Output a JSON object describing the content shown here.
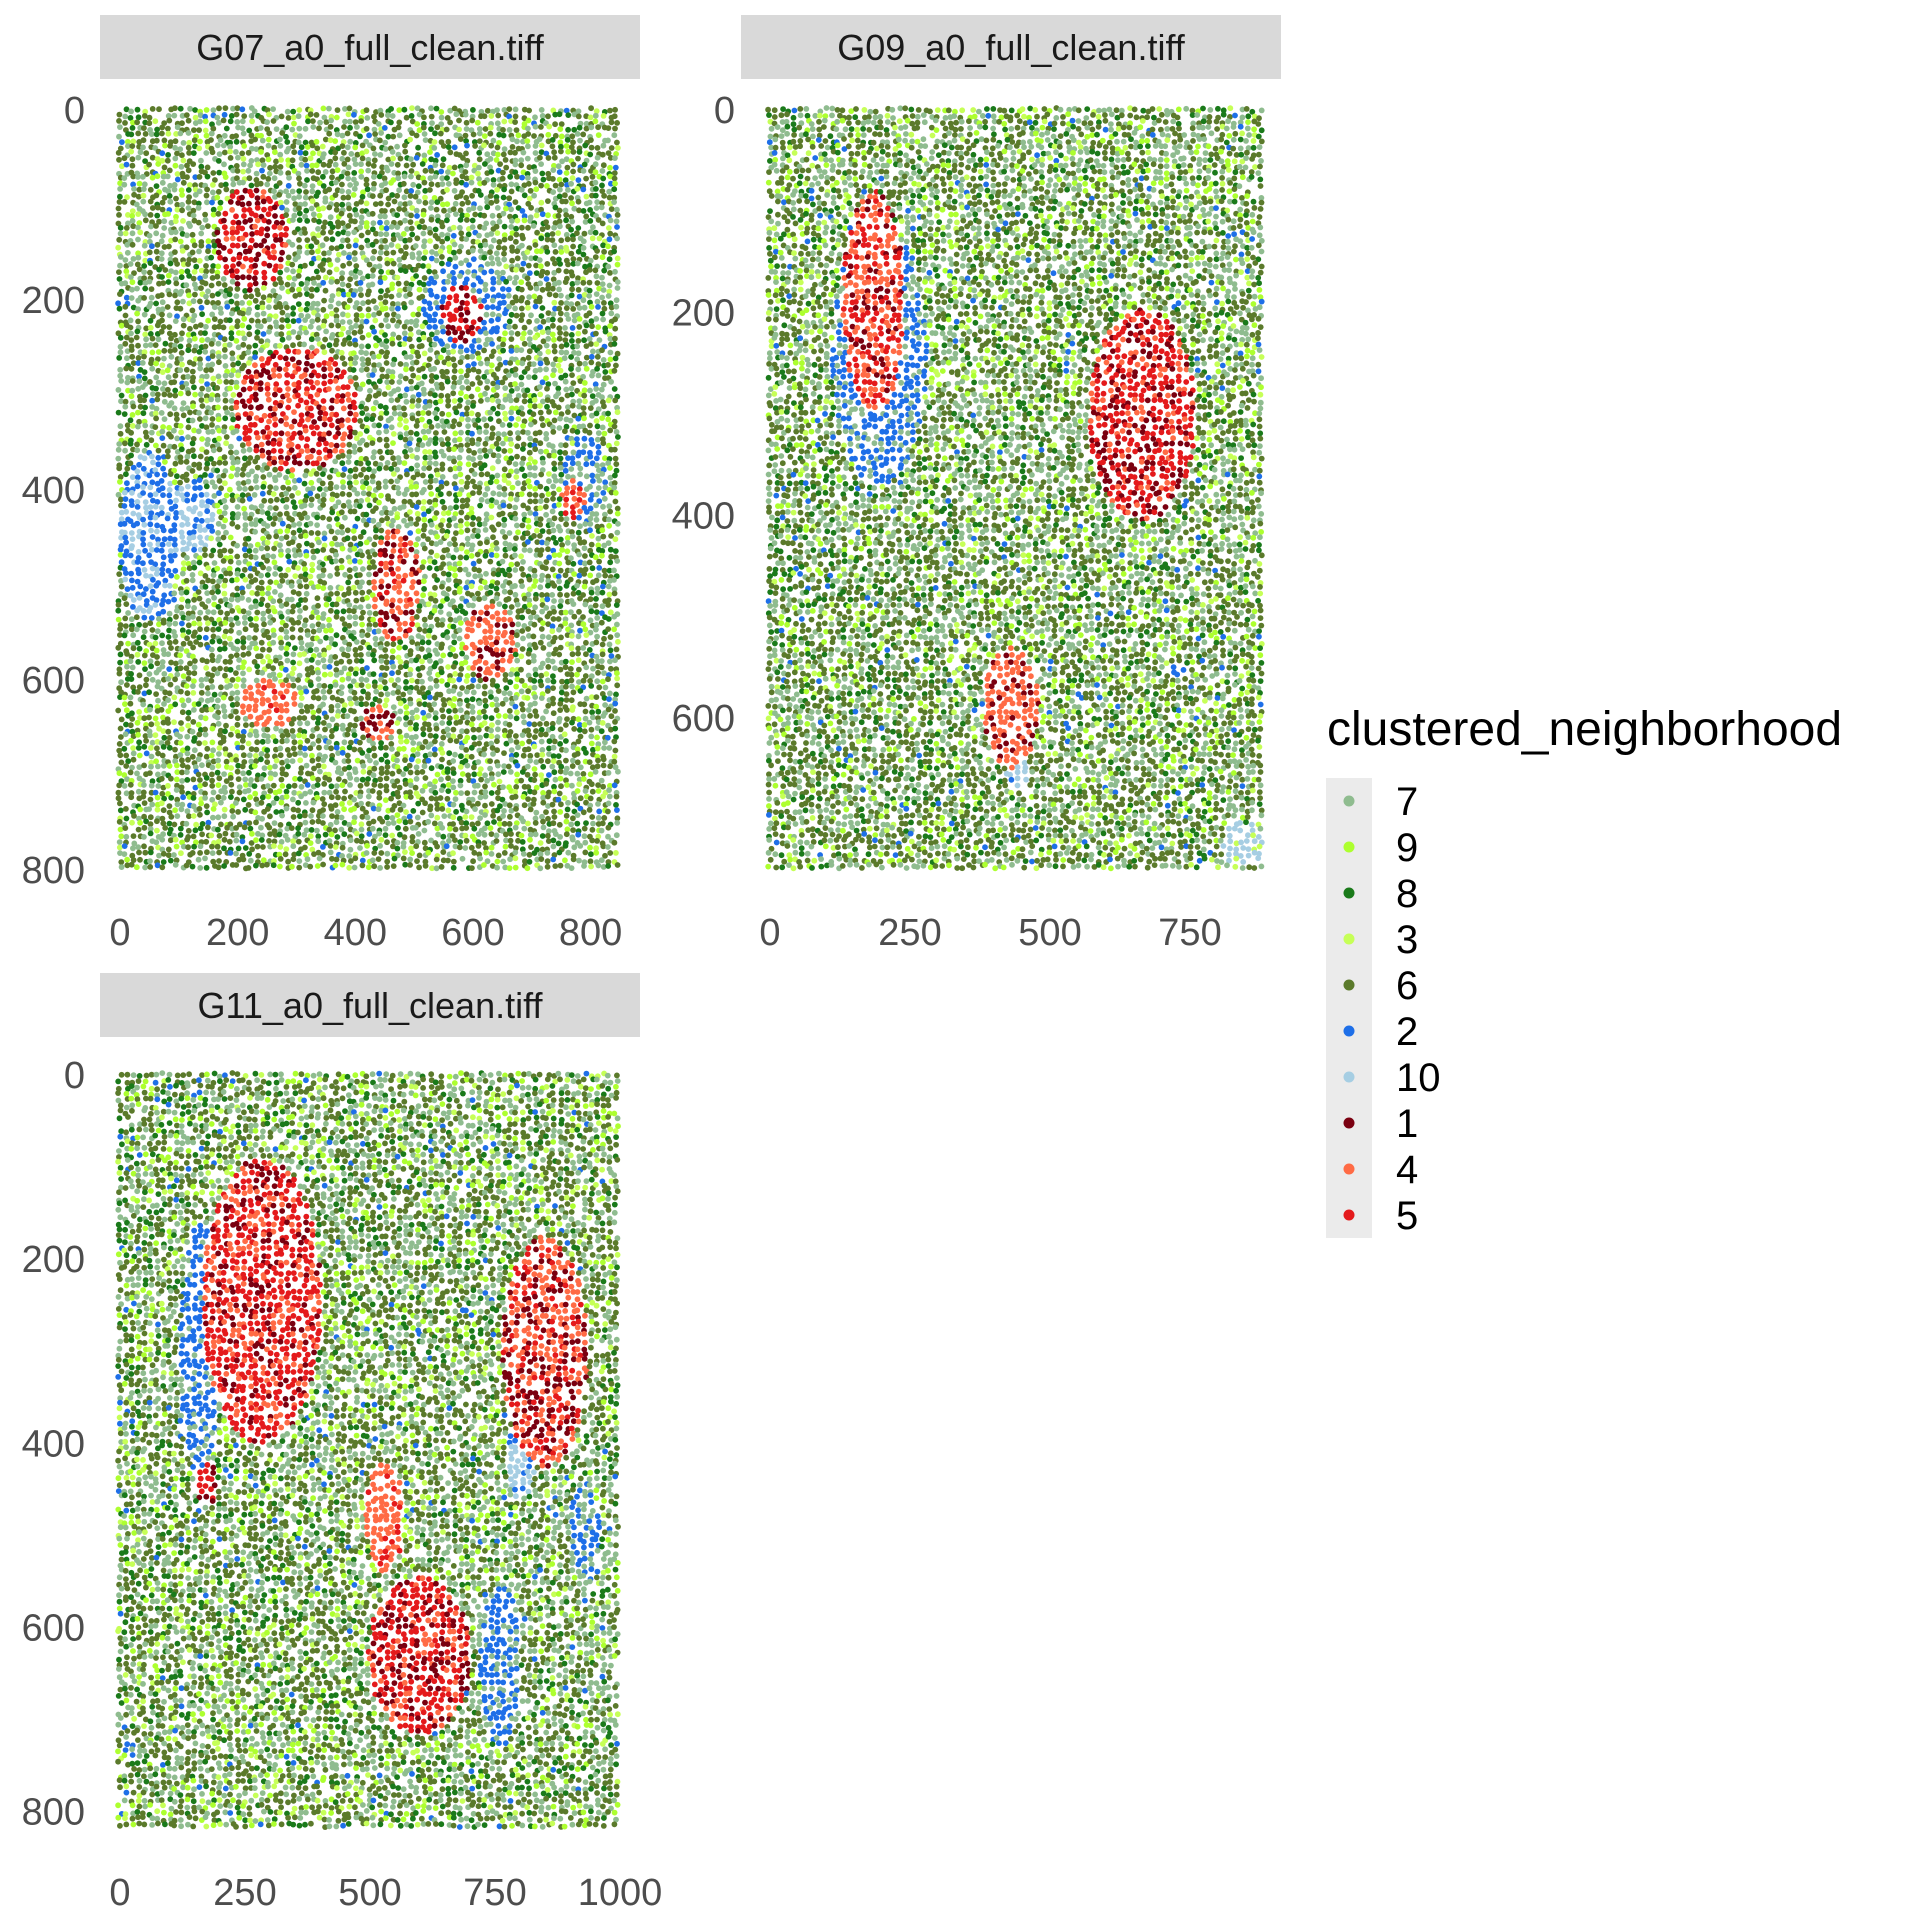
{
  "chart_data": {
    "type": "scatter",
    "legend": {
      "title": "clustered_neighborhood",
      "placement": "right",
      "entries": [
        {
          "label": "7",
          "color": "#8FBC8F"
        },
        {
          "label": "9",
          "color": "#ADFF2F"
        },
        {
          "label": "8",
          "color": "#1A7A1A"
        },
        {
          "label": "3",
          "color": "#C6FF57"
        },
        {
          "label": "6",
          "color": "#5B7A2B"
        },
        {
          "label": "2",
          "color": "#1E6FE8"
        },
        {
          "label": "10",
          "color": "#A6CEE3"
        },
        {
          "label": "1",
          "color": "#7A0010"
        },
        {
          "label": "4",
          "color": "#FF6B45"
        },
        {
          "label": "5",
          "color": "#E41A1C"
        }
      ]
    },
    "panels": [
      {
        "title": "G07_a0_full_clean.tiff",
        "xlim": [
          0,
          850
        ],
        "ylim": [
          0,
          800
        ],
        "xticks": [
          "0",
          "200",
          "400",
          "600",
          "800"
        ],
        "yticks": [
          "0",
          "200",
          "400",
          "600",
          "800"
        ],
        "y_reversed": true,
        "regions": [
          {
            "shape": "ellipse",
            "cx": 225,
            "cy": 135,
            "rx": 60,
            "ry": 55,
            "mix": {
              "5": 0.5,
              "1": 0.35,
              "4": 0.15
            }
          },
          {
            "shape": "ellipse",
            "cx": 300,
            "cy": 315,
            "rx": 105,
            "ry": 65,
            "mix": {
              "5": 0.45,
              "1": 0.25,
              "4": 0.3
            }
          },
          {
            "shape": "ellipse",
            "cx": 340,
            "cy": 330,
            "rx": 50,
            "ry": 45,
            "mix": {
              "4": 0.8,
              "5": 0.2
            }
          },
          {
            "shape": "ellipse",
            "cx": 580,
            "cy": 215,
            "rx": 35,
            "ry": 30,
            "mix": {
              "5": 0.6,
              "1": 0.4
            }
          },
          {
            "shape": "ellipse",
            "cx": 470,
            "cy": 500,
            "rx": 40,
            "ry": 60,
            "mix": {
              "4": 0.6,
              "1": 0.3,
              "5": 0.1
            }
          },
          {
            "shape": "ellipse",
            "cx": 630,
            "cy": 560,
            "rx": 45,
            "ry": 40,
            "mix": {
              "4": 0.7,
              "1": 0.3
            }
          },
          {
            "shape": "ellipse",
            "cx": 255,
            "cy": 625,
            "rx": 50,
            "ry": 25,
            "mix": {
              "4": 0.85,
              "5": 0.15
            }
          },
          {
            "shape": "ellipse",
            "cx": 440,
            "cy": 645,
            "rx": 30,
            "ry": 18,
            "mix": {
              "1": 0.5,
              "4": 0.5
            }
          },
          {
            "shape": "ellipse",
            "cx": 770,
            "cy": 410,
            "rx": 20,
            "ry": 20,
            "mix": {
              "5": 0.5,
              "4": 0.5
            }
          },
          {
            "shape": "ellipse",
            "cx": 50,
            "cy": 450,
            "rx": 50,
            "ry": 90,
            "mix": {
              "2": 0.6,
              "10": 0.4
            }
          },
          {
            "shape": "ellipse",
            "cx": 120,
            "cy": 430,
            "rx": 40,
            "ry": 40,
            "mix": {
              "10": 0.7,
              "2": 0.3
            }
          },
          {
            "shape": "ellipse",
            "cx": 590,
            "cy": 205,
            "rx": 75,
            "ry": 50,
            "mix": {
              "2": 0.7,
              "7": 0.3
            }
          },
          {
            "shape": "ellipse",
            "cx": 790,
            "cy": 390,
            "rx": 40,
            "ry": 45,
            "mix": {
              "2": 0.7,
              "7": 0.3
            }
          }
        ]
      },
      {
        "title": "G09_a0_full_clean.tiff",
        "xlim": [
          0,
          875
        ],
        "ylim": [
          0,
          750
        ],
        "xticks": [
          "0",
          "250",
          "500",
          "750"
        ],
        "yticks": [
          "0",
          "200",
          "400",
          "600"
        ],
        "y_reversed": true,
        "regions": [
          {
            "shape": "ellipse",
            "cx": 185,
            "cy": 190,
            "rx": 55,
            "ry": 110,
            "mix": {
              "4": 0.45,
              "5": 0.35,
              "1": 0.2
            }
          },
          {
            "shape": "ellipse",
            "cx": 665,
            "cy": 300,
            "rx": 95,
            "ry": 105,
            "mix": {
              "5": 0.5,
              "1": 0.3,
              "4": 0.2
            }
          },
          {
            "shape": "ellipse",
            "cx": 430,
            "cy": 590,
            "rx": 50,
            "ry": 60,
            "mix": {
              "4": 0.8,
              "1": 0.2
            }
          },
          {
            "shape": "ellipse",
            "cx": 195,
            "cy": 240,
            "rx": 85,
            "ry": 130,
            "mix": {
              "2": 0.7,
              "7": 0.3
            }
          },
          {
            "shape": "ellipse",
            "cx": 845,
            "cy": 725,
            "rx": 40,
            "ry": 22,
            "mix": {
              "10": 0.8,
              "3": 0.2
            }
          },
          {
            "shape": "ellipse",
            "cx": 440,
            "cy": 655,
            "rx": 20,
            "ry": 18,
            "mix": {
              "10": 0.9,
              "2": 0.1
            }
          }
        ]
      },
      {
        "title": "G11_a0_full_clean.tiff",
        "xlim": [
          0,
          1000
        ],
        "ylim": [
          0,
          820
        ],
        "xticks": [
          "0",
          "250",
          "500",
          "750",
          "1000"
        ],
        "yticks": [
          "0",
          "200",
          "400",
          "600",
          "800"
        ],
        "y_reversed": true,
        "regions": [
          {
            "shape": "ellipse",
            "cx": 285,
            "cy": 245,
            "rx": 120,
            "ry": 155,
            "mix": {
              "5": 0.55,
              "4": 0.25,
              "1": 0.2
            }
          },
          {
            "shape": "ellipse",
            "cx": 850,
            "cy": 300,
            "rx": 85,
            "ry": 125,
            "mix": {
              "4": 0.4,
              "1": 0.35,
              "5": 0.25
            }
          },
          {
            "shape": "ellipse",
            "cx": 600,
            "cy": 630,
            "rx": 105,
            "ry": 85,
            "mix": {
              "5": 0.5,
              "1": 0.3,
              "4": 0.2
            }
          },
          {
            "shape": "ellipse",
            "cx": 530,
            "cy": 480,
            "rx": 38,
            "ry": 60,
            "mix": {
              "4": 0.8,
              "5": 0.2
            }
          },
          {
            "shape": "ellipse",
            "cx": 175,
            "cy": 445,
            "rx": 22,
            "ry": 22,
            "mix": {
              "5": 0.5,
              "1": 0.5
            }
          },
          {
            "shape": "ellipse",
            "cx": 160,
            "cy": 300,
            "rx": 40,
            "ry": 140,
            "mix": {
              "2": 0.8,
              "7": 0.2
            }
          },
          {
            "shape": "ellipse",
            "cx": 760,
            "cy": 640,
            "rx": 40,
            "ry": 90,
            "mix": {
              "2": 0.7,
              "7": 0.3
            }
          },
          {
            "shape": "ellipse",
            "cx": 800,
            "cy": 420,
            "rx": 30,
            "ry": 40,
            "mix": {
              "10": 0.6,
              "2": 0.4
            }
          },
          {
            "shape": "ellipse",
            "cx": 930,
            "cy": 500,
            "rx": 30,
            "ry": 60,
            "mix": {
              "2": 0.6,
              "7": 0.4
            }
          }
        ]
      }
    ]
  }
}
